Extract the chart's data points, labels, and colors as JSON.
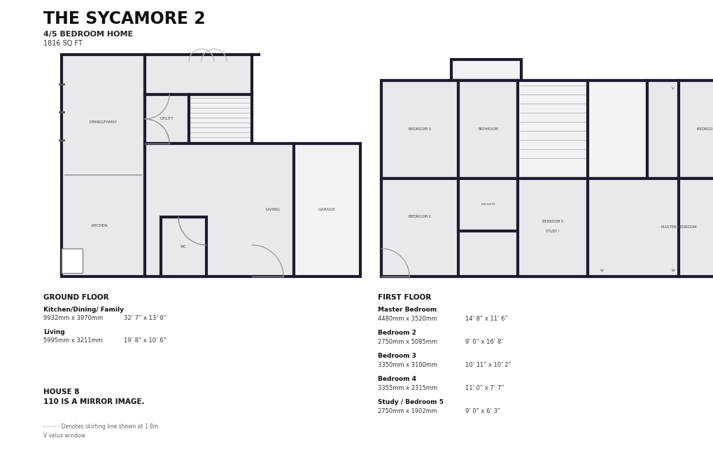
{
  "title": "THE SYCAMORE 2",
  "subtitle1": "4/5 BEDROOM HOME",
  "subtitle2": "1816 SQ FT",
  "bg_color": "#ffffff",
  "wall_color": "#1c1c2e",
  "room_fill": "#e8e8ed",
  "light_fill": "#f2f2f5",
  "white_fill": "#ffffff",
  "ground_floor_label": "GROUND FLOOR",
  "first_floor_label": "FIRST FLOOR",
  "ground_rooms": [
    {
      "name": "Kitchen/Dining/ Family",
      "mm": "9932mm x 3970mm",
      "imperial": "32’ 7” x 13’ 0”"
    },
    {
      "name": "Living",
      "mm": "5995mm x 3211mm",
      "imperial": "19’ 8” x 10’ 6”"
    }
  ],
  "first_rooms": [
    {
      "name": "Master Bedroom",
      "mm": "4480mm x 3520mm",
      "imperial": "14’ 8” x 11’ 6”"
    },
    {
      "name": "Bedroom 2",
      "mm": "2750mm x 5085mm",
      "imperial": "9’ 0” x 16’ 8″"
    },
    {
      "name": "Bedroom 3",
      "mm": "3350mm x 3100mm",
      "imperial": "10’ 11” x 10’ 2”"
    },
    {
      "name": "Bedroom 4",
      "mm": "3355mm x 2315mm",
      "imperial": "11’ 0” x 7’ 7”"
    },
    {
      "name": "Study / Bedroom 5",
      "mm": "2750mm x 1902mm",
      "imperial": "9’ 0” x 6’ 3”"
    }
  ],
  "house_note": "HOUSE 8",
  "mirror_note": "110 IS A MIRROR IMAGE.",
  "skirt_note": "- - - - - Denotes skirting line shown at 1.8m",
  "velux_note": "V velux window"
}
